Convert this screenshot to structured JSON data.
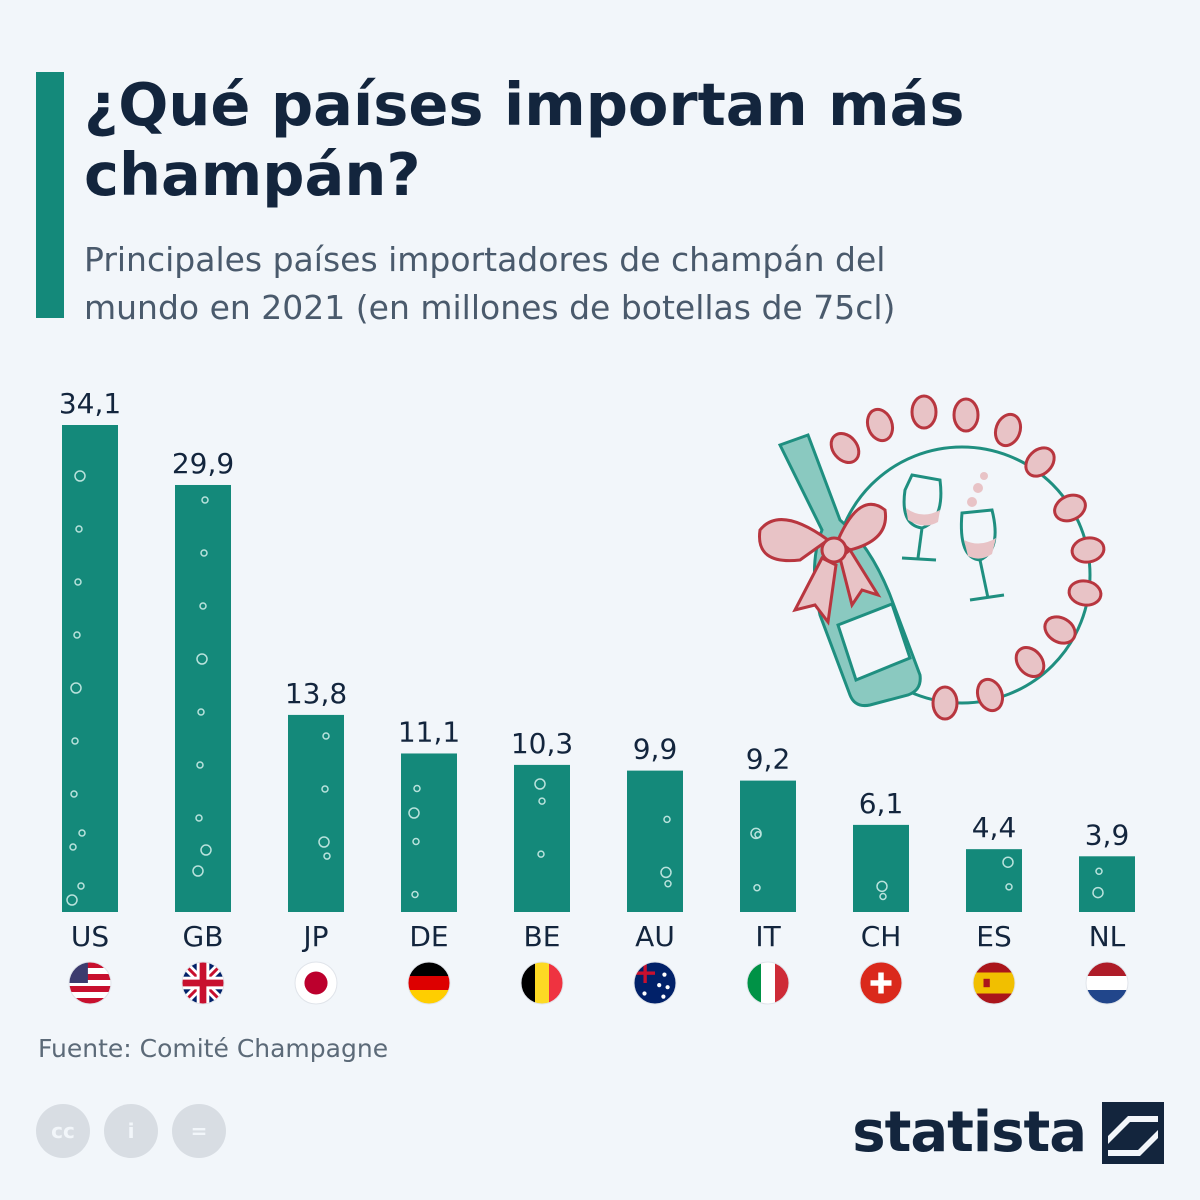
{
  "header": {
    "title": "¿Qué países importan más champán?",
    "subtitle": "Principales países importadores de champán del mundo en 2021 (en millones de botellas de 75cl)"
  },
  "chart_data": {
    "type": "bar",
    "categories": [
      "US",
      "GB",
      "JP",
      "DE",
      "BE",
      "AU",
      "IT",
      "CH",
      "ES",
      "NL"
    ],
    "values": [
      34.1,
      29.9,
      13.8,
      11.1,
      10.3,
      9.9,
      9.2,
      6.1,
      4.4,
      3.9
    ],
    "value_labels": [
      "34,1",
      "29,9",
      "13,8",
      "11,1",
      "10,3",
      "9,9",
      "9,2",
      "6,1",
      "4,4",
      "3,9"
    ],
    "flag_icons": [
      "us-flag-icon",
      "gb-flag-icon",
      "jp-flag-icon",
      "de-flag-icon",
      "be-flag-icon",
      "au-flag-icon",
      "it-flag-icon",
      "ch-flag-icon",
      "es-flag-icon",
      "nl-flag-icon"
    ],
    "ylim": [
      0,
      34.1
    ],
    "grid": false,
    "bar_color": "#14897a"
  },
  "footer": {
    "source": "Fuente: Comité Champagne",
    "license_icons": [
      "cc-icon",
      "attribution-icon",
      "no-derivatives-icon"
    ],
    "brand": "statista"
  },
  "colors": {
    "accent": "#14897a",
    "title": "#13253d",
    "background": "#f2f6fa"
  }
}
